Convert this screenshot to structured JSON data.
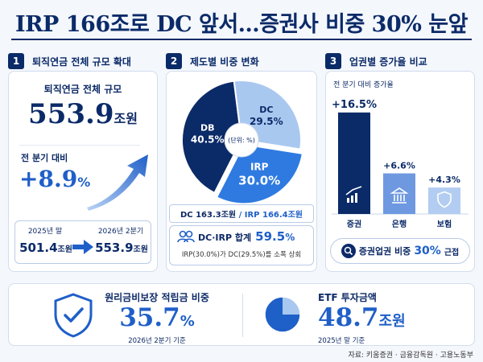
{
  "title": "IRP 166조로 DC 앞서…증권사 비중 30% 눈앞",
  "panel1": {
    "num": "1",
    "heading": "퇴직연금 전체 규모 확대",
    "label": "퇴직연금 전체 규모",
    "total_value": "553.9",
    "total_unit": "조원",
    "qoq_label": "전 분기 대비",
    "qoq_value": "+8.9",
    "qoq_unit": "%",
    "prev_period": "2025년 말",
    "prev_value": "501.4",
    "prev_unit": "조원",
    "curr_period": "2026년 2분기",
    "curr_value": "553.9",
    "curr_unit": "조원"
  },
  "panel2": {
    "num": "2",
    "heading": "제도별 비중 변화",
    "center_note": "(단위: %)",
    "amounts_dc": "DC 163.3조원",
    "amounts_sep": "/",
    "amounts_irp": "IRP 166.4조원",
    "sum_label": "DC·IRP 합계",
    "sum_value": "59.5",
    "sum_unit": "%",
    "note": "IRP(30.0%)가 DC(29.5%)를 소폭 상회"
  },
  "panel3": {
    "num": "3",
    "heading": "업권별 증가율 비교",
    "sublabel": "전 분기 대비 증가율",
    "badge_label": "증권업권 비중",
    "badge_value": "30%",
    "badge_suffix": "근접"
  },
  "bottom": {
    "guarantee_label": "원리금비보장 적립금 비중",
    "guarantee_value": "35.7",
    "guarantee_unit": "%",
    "guarantee_note": "2026년 2분기 기준",
    "etf_label": "ETF 투자금액",
    "etf_value": "48.7",
    "etf_unit": "조원",
    "etf_note": "2025년 말 기준"
  },
  "source": "자료: 키움증권 · 금융감독원 · 고용노동부",
  "colors": {
    "navy": "#0b2a68",
    "mid": "#2f6fd1",
    "light": "#a9c8f0",
    "accent": "#1f5fc8"
  },
  "chart_data": [
    {
      "type": "pie",
      "categories": [
        "DB",
        "DC",
        "IRP"
      ],
      "values": [
        40.5,
        29.5,
        30.0
      ],
      "labels": [
        "40.5%",
        "29.5%",
        "30.0%"
      ],
      "colors": [
        "#0b2a68",
        "#a9c8f0",
        "#2f7ae0"
      ]
    },
    {
      "type": "bar",
      "categories": [
        "증권",
        "은행",
        "보험"
      ],
      "values": [
        16.5,
        6.6,
        4.3
      ],
      "labels": [
        "+16.5%",
        "+6.6%",
        "+4.3%"
      ],
      "ylim": [
        0,
        17
      ],
      "colors": [
        "#0b2a68",
        "#6e99e0",
        "#b3cdf2"
      ],
      "icons": [
        "growth-chart-icon",
        "bank-icon",
        "shield-icon"
      ]
    }
  ]
}
